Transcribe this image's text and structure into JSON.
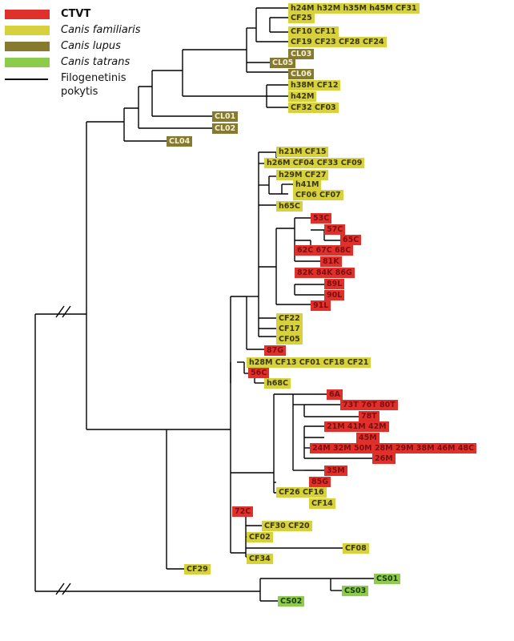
{
  "colors": {
    "ctvt": "#e0302c",
    "familiaris": "#d7d13d",
    "lupus": "#857a30",
    "tatrans": "#8ccb4c",
    "line": "#000000"
  },
  "legend": {
    "ctvt": "CTVT",
    "familiaris": "Canis familiaris",
    "lupus": "Canis lupus",
    "tatrans": "Canis tatrans",
    "tree_line_1": "Filogenetinis",
    "tree_line_2": "pokytis"
  },
  "labels": {
    "h24_row": "h24M h32M h35M h45M CF31",
    "cf25": "CF25",
    "cf10_row": "CF10 CF11",
    "cf19_row": "CF19 CF23 CF28 CF24",
    "cl03": "CL03",
    "cl05": "CL05",
    "cl06": "CL06",
    "h38_row": "h38M CF12",
    "h42": "h42M",
    "cf32_row": "CF32 CF03",
    "cl01": "CL01",
    "cl02": "CL02",
    "cl04": "CL04",
    "h21_row": "h21M CF15",
    "h26_row": "h26M CF04 CF33 CF09",
    "h29_row": "h29M CF27",
    "h41": "h41M",
    "cf06_row": "CF06 CF07",
    "h65": "h65C",
    "c53": "53C",
    "c57": "57C",
    "c65": "65C",
    "c62_row": "62C 67C 68C",
    "k81": "81K",
    "k82_row": "82K 84K 86G",
    "l89": "89L",
    "l90": "90L",
    "l91": "91L",
    "cf22": "CF22",
    "cf17": "CF17",
    "cf05": "CF05",
    "g87": "87G",
    "h28_row": "h28M CF13 CF01 CF18 CF21",
    "c56": "56C",
    "h68": "h68C",
    "a6": "6A",
    "t73_row": "73T 76T 80T",
    "t78": "78T",
    "m21_row": "21M 41M 42M",
    "m45": "45M",
    "m24_row": "24M 32M 50M 28M 29M 38M 46M 48C",
    "m26": "26M",
    "m35": "35M",
    "g85": "85G",
    "cf26_row": "CF26 CF16",
    "cf14": "CF14",
    "c72": "72C",
    "cf30_row": "CF30 CF20",
    "cf02": "CF02",
    "cf08": "CF08",
    "cf34": "CF34",
    "cf29": "CF29",
    "cs01": "CS01",
    "cs03": "CS03",
    "cs02": "CS02"
  }
}
